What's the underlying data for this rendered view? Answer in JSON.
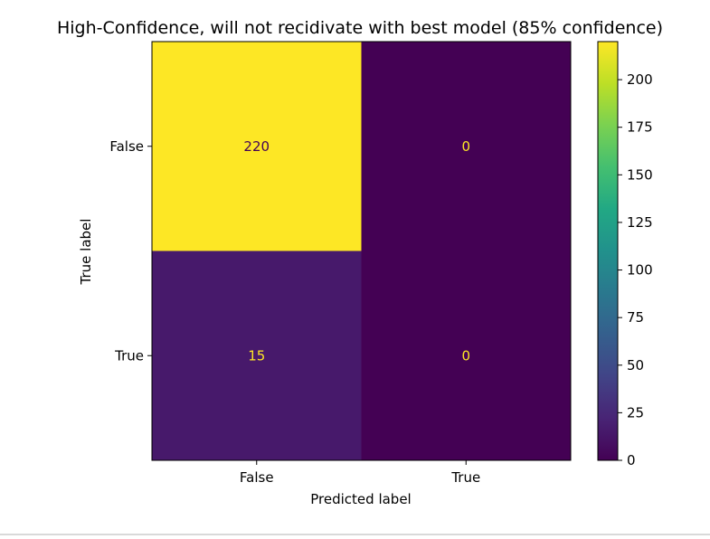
{
  "chart_data": {
    "type": "heatmap",
    "title": "High-Confidence, will not recidivate with best model (85% confidence)",
    "xlabel": "Predicted label",
    "ylabel": "True label",
    "x_categories": [
      "False",
      "True"
    ],
    "y_categories": [
      "False",
      "True"
    ],
    "values": [
      [
        220,
        0
      ],
      [
        15,
        0
      ]
    ],
    "colorbar": {
      "colormap": "viridis",
      "range": [
        0,
        220
      ],
      "ticks": [
        0,
        25,
        50,
        75,
        100,
        125,
        150,
        175,
        200
      ]
    },
    "colors": {
      "low_text": "#fde725",
      "high_text": "#440154"
    }
  }
}
